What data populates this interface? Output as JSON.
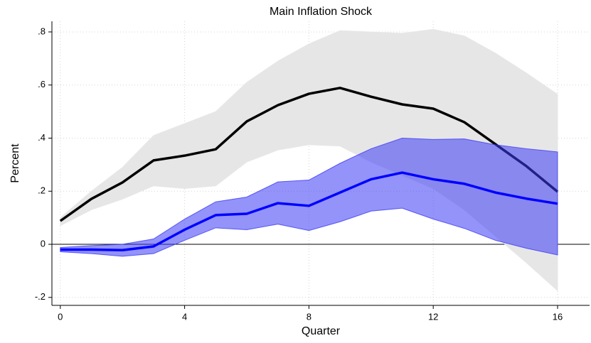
{
  "chart_data": {
    "type": "line-band",
    "title": "Main Inflation Shock",
    "x_label": "Quarter",
    "y_label": "Percent",
    "x": [
      0,
      1,
      2,
      3,
      4,
      5,
      6,
      7,
      8,
      9,
      10,
      11,
      12,
      13,
      14,
      15,
      16
    ],
    "series": [
      {
        "color": "#000000",
        "band_color": "#e6e6e6",
        "values": [
          0.088,
          0.171,
          0.233,
          0.316,
          0.334,
          0.358,
          0.463,
          0.524,
          0.567,
          0.589,
          0.556,
          0.527,
          0.511,
          0.46,
          0.377,
          0.294,
          0.198
        ],
        "upper": [
          0.1,
          0.2,
          0.29,
          0.41,
          0.455,
          0.5,
          0.61,
          0.69,
          0.755,
          0.805,
          0.8,
          0.795,
          0.81,
          0.785,
          0.72,
          0.645,
          0.565
        ],
        "lower": [
          0.07,
          0.13,
          0.17,
          0.22,
          0.21,
          0.22,
          0.31,
          0.355,
          0.375,
          0.37,
          0.31,
          0.26,
          0.21,
          0.13,
          0.03,
          -0.07,
          -0.175
        ]
      },
      {
        "color": "#0000ff",
        "band_color": "#3a3af5",
        "values": [
          -0.02,
          -0.02,
          -0.022,
          -0.008,
          0.055,
          0.11,
          0.115,
          0.155,
          0.145,
          0.195,
          0.245,
          0.27,
          0.245,
          0.228,
          0.195,
          0.172,
          0.153
        ],
        "upper": [
          -0.012,
          -0.005,
          0.0,
          0.02,
          0.095,
          0.16,
          0.178,
          0.235,
          0.242,
          0.305,
          0.36,
          0.4,
          0.395,
          0.397,
          0.375,
          0.36,
          0.348
        ],
        "lower": [
          -0.028,
          -0.035,
          -0.045,
          -0.035,
          0.015,
          0.062,
          0.055,
          0.076,
          0.052,
          0.085,
          0.125,
          0.136,
          0.095,
          0.06,
          0.015,
          -0.015,
          -0.04
        ]
      }
    ],
    "xlim": [
      -0.27,
      17.03
    ],
    "ylim": [
      -0.23,
      0.84
    ],
    "xticks": [
      0,
      4,
      8,
      12,
      16
    ],
    "yticks": [
      {
        "value": -0.2,
        "label": "-.2"
      },
      0,
      {
        "value": 0.2,
        "label": ".2"
      },
      {
        "value": 0.4,
        "label": ".4"
      },
      {
        "value": 0.6,
        "label": ".6"
      },
      {
        "value": 0.8,
        "label": ".8"
      }
    ],
    "reference_line": 0,
    "grid": true
  }
}
